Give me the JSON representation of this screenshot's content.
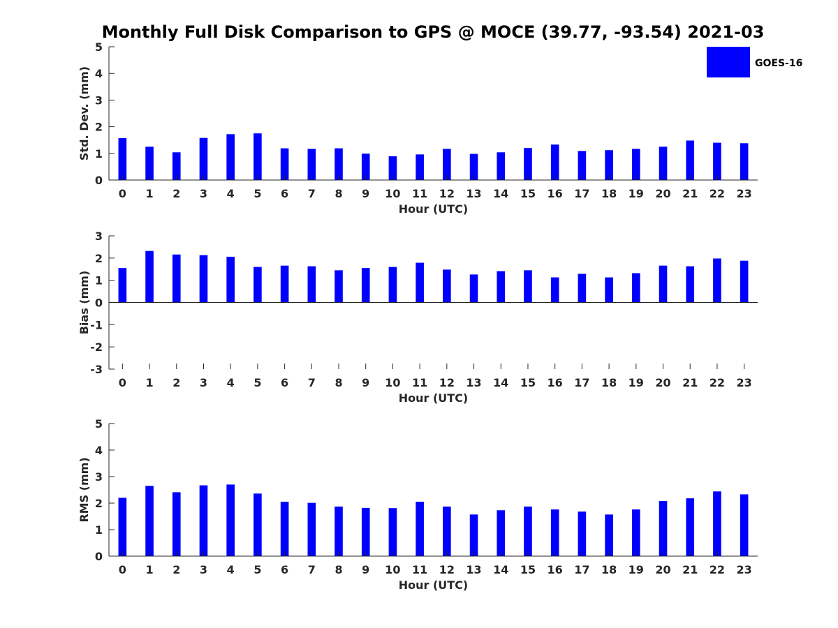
{
  "title": "Monthly Full Disk Comparison to GPS @ MOCE (39.77, -93.54) 2021-03",
  "bar_color": "#0000ff",
  "chart_data": [
    {
      "type": "bar",
      "ylabel": "Std. Dev. (mm)",
      "xlabel": "Hour (UTC)",
      "ylim": [
        0,
        5
      ],
      "yticks": [
        0,
        1,
        2,
        3,
        4,
        5
      ],
      "legend": {
        "entries": [
          "GOES-16"
        ],
        "placement": "top-right"
      },
      "categories": [
        "0",
        "1",
        "2",
        "3",
        "4",
        "5",
        "6",
        "7",
        "8",
        "9",
        "10",
        "11",
        "12",
        "13",
        "14",
        "15",
        "16",
        "17",
        "18",
        "19",
        "20",
        "21",
        "22",
        "23"
      ],
      "series": [
        {
          "name": "GOES-16",
          "values": [
            1.57,
            1.25,
            1.04,
            1.58,
            1.72,
            1.75,
            1.19,
            1.17,
            1.19,
            0.99,
            0.89,
            0.96,
            1.17,
            0.98,
            1.04,
            1.2,
            1.33,
            1.09,
            1.12,
            1.17,
            1.25,
            1.48,
            1.4,
            1.38
          ]
        }
      ]
    },
    {
      "type": "bar",
      "ylabel": "Bias (mm)",
      "xlabel": "Hour (UTC)",
      "ylim": [
        -3,
        3
      ],
      "yticks": [
        -3,
        -2,
        -1,
        0,
        1,
        2,
        3
      ],
      "categories": [
        "0",
        "1",
        "2",
        "3",
        "4",
        "5",
        "6",
        "7",
        "8",
        "9",
        "10",
        "11",
        "12",
        "13",
        "14",
        "15",
        "16",
        "17",
        "18",
        "19",
        "20",
        "21",
        "22",
        "23"
      ],
      "series": [
        {
          "name": "GOES-16",
          "values": [
            1.55,
            2.32,
            2.16,
            2.13,
            2.06,
            1.6,
            1.66,
            1.63,
            1.45,
            1.55,
            1.6,
            1.79,
            1.48,
            1.26,
            1.41,
            1.45,
            1.13,
            1.29,
            1.13,
            1.32,
            1.66,
            1.63,
            1.98,
            1.88
          ]
        }
      ]
    },
    {
      "type": "bar",
      "ylabel": "RMS (mm)",
      "xlabel": "Hour (UTC)",
      "ylim": [
        0,
        5
      ],
      "yticks": [
        0,
        1,
        2,
        3,
        4,
        5
      ],
      "categories": [
        "0",
        "1",
        "2",
        "3",
        "4",
        "5",
        "6",
        "7",
        "8",
        "9",
        "10",
        "11",
        "12",
        "13",
        "14",
        "15",
        "16",
        "17",
        "18",
        "19",
        "20",
        "21",
        "22",
        "23"
      ],
      "series": [
        {
          "name": "GOES-16",
          "values": [
            2.2,
            2.65,
            2.41,
            2.67,
            2.7,
            2.36,
            2.05,
            2.01,
            1.87,
            1.82,
            1.81,
            2.05,
            1.87,
            1.57,
            1.73,
            1.87,
            1.76,
            1.68,
            1.57,
            1.76,
            2.08,
            2.18,
            2.44,
            2.33
          ]
        }
      ]
    }
  ]
}
